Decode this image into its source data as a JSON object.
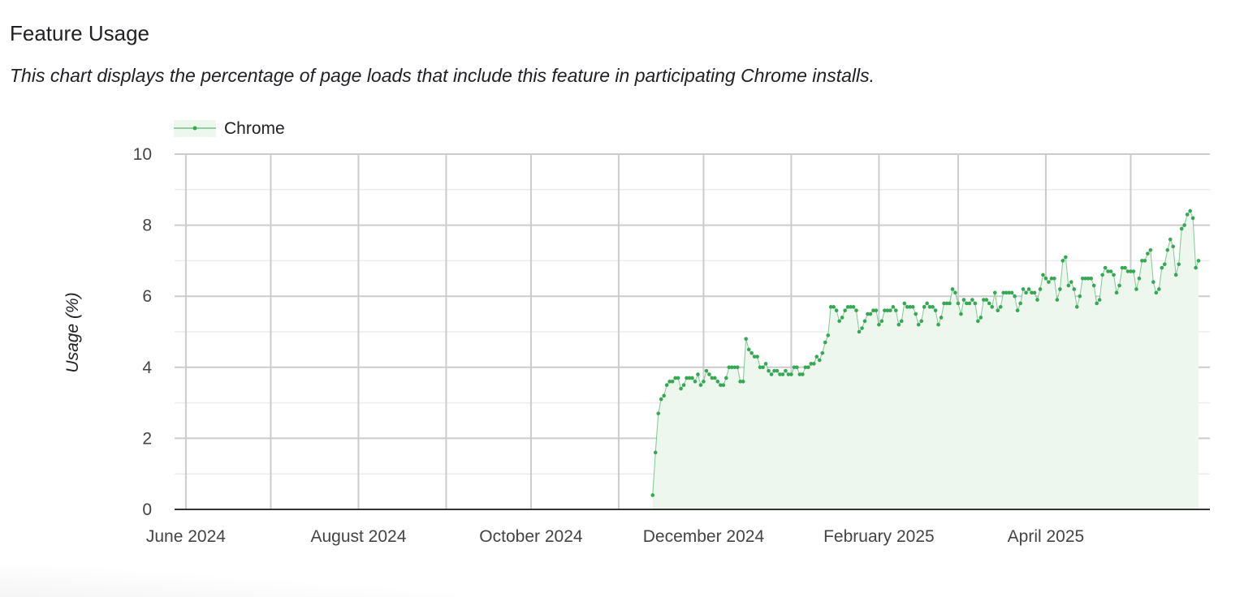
{
  "header": {
    "title": "Feature Usage",
    "subtitle": "This chart displays the percentage of page loads that include this feature in participating Chrome installs."
  },
  "chart_data": {
    "type": "area",
    "title": "",
    "xlabel": "",
    "ylabel": "Usage (%)",
    "ylim": [
      0,
      10
    ],
    "yticks": [
      0,
      2,
      4,
      6,
      8,
      10
    ],
    "xlim": [
      "2024-05-28",
      "2025-05-29"
    ],
    "xtick_labels": [
      {
        "date": "2024-06-01",
        "label": "June 2024"
      },
      {
        "date": "2024-08-01",
        "label": "August 2024"
      },
      {
        "date": "2024-10-01",
        "label": "October 2024"
      },
      {
        "date": "2024-12-01",
        "label": "December 2024"
      },
      {
        "date": "2025-02-01",
        "label": "February 2025"
      },
      {
        "date": "2025-04-01",
        "label": "April 2025"
      }
    ],
    "grid": true,
    "legend": "top-left",
    "colors": {
      "line": "#34a853",
      "fill": "#edf7ee"
    },
    "series": [
      {
        "name": "Chrome",
        "x_first": "2024-11-13",
        "x_last": "2025-05-25",
        "x_interval": "daily",
        "values": [
          0.4,
          1.6,
          2.7,
          3.1,
          3.2,
          3.5,
          3.6,
          3.6,
          3.7,
          3.7,
          3.4,
          3.5,
          3.7,
          3.7,
          3.7,
          3.6,
          3.8,
          3.5,
          3.6,
          3.9,
          3.8,
          3.7,
          3.7,
          3.6,
          3.5,
          3.5,
          3.7,
          4.0,
          4.0,
          4.0,
          4.0,
          3.6,
          3.6,
          4.8,
          4.5,
          4.4,
          4.3,
          4.3,
          4.0,
          4.0,
          4.1,
          3.9,
          3.8,
          3.9,
          3.9,
          3.8,
          3.8,
          3.9,
          3.8,
          3.8,
          4.0,
          4.0,
          3.8,
          3.8,
          4.0,
          4.0,
          4.1,
          4.1,
          4.3,
          4.2,
          4.4,
          4.7,
          4.9,
          5.7,
          5.7,
          5.6,
          5.3,
          5.4,
          5.6,
          5.7,
          5.7,
          5.7,
          5.6,
          5.0,
          5.1,
          5.3,
          5.5,
          5.5,
          5.6,
          5.6,
          5.2,
          5.3,
          5.6,
          5.6,
          5.6,
          5.7,
          5.6,
          5.2,
          5.3,
          5.8,
          5.7,
          5.7,
          5.7,
          5.5,
          5.2,
          5.3,
          5.7,
          5.8,
          5.7,
          5.7,
          5.6,
          5.2,
          5.4,
          5.8,
          5.8,
          5.8,
          6.2,
          6.1,
          5.8,
          5.5,
          5.9,
          5.8,
          5.8,
          5.9,
          5.8,
          5.3,
          5.4,
          5.9,
          5.9,
          5.8,
          5.7,
          6.1,
          5.6,
          5.7,
          6.1,
          6.1,
          6.1,
          6.1,
          6.0,
          5.6,
          5.8,
          6.2,
          6.1,
          6.2,
          6.1,
          6.1,
          5.9,
          6.2,
          6.6,
          6.5,
          6.4,
          6.5,
          6.5,
          5.9,
          6.2,
          7.0,
          7.1,
          6.3,
          6.4,
          6.2,
          5.7,
          6.0,
          6.5,
          6.5,
          6.5,
          6.5,
          6.3,
          5.8,
          5.9,
          6.6,
          6.8,
          6.7,
          6.7,
          6.6,
          6.1,
          6.3,
          6.8,
          6.8,
          6.7,
          6.7,
          6.7,
          6.2,
          6.5,
          7.0,
          7.0,
          7.2,
          7.3,
          6.4,
          6.1,
          6.2,
          6.8,
          6.9,
          7.3,
          7.6,
          7.4,
          6.6,
          6.9,
          7.9,
          8.0,
          8.3,
          8.4,
          8.2,
          6.8,
          7.0
        ]
      }
    ]
  }
}
